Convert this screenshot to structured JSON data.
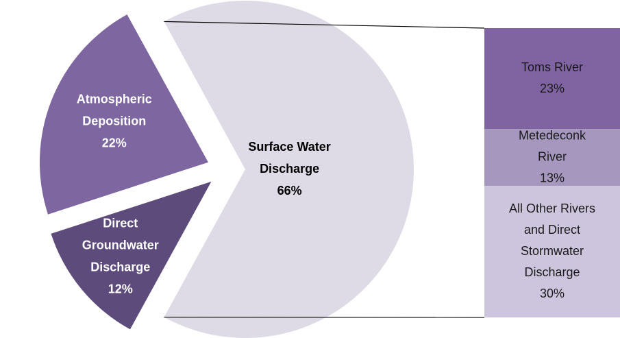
{
  "chart_data": {
    "type": "pie",
    "pie_slices": [
      {
        "name": "Surface Water Discharge",
        "label_lines": [
          "Surface Water",
          "Discharge",
          "66%"
        ],
        "value": 66,
        "color": "#dedbe6",
        "text_color": "#000000"
      },
      {
        "name": "Direct Groundwater Discharge",
        "label_lines": [
          "Direct",
          "Groundwater",
          "Discharge",
          "12%"
        ],
        "value": 12,
        "color": "#5d4b7b",
        "text_color": "#ffffff"
      },
      {
        "name": "Atmospheric Deposition",
        "label_lines": [
          "Atmospheric",
          "Deposition",
          "22%"
        ],
        "value": 22,
        "color": "#7e67a0",
        "text_color": "#ffffff"
      }
    ],
    "bar_segments": [
      {
        "name": "Toms River",
        "label_lines": [
          "Toms River",
          "23%"
        ],
        "value": 23,
        "color": "#8064a2",
        "text_color": "#1a1a1a"
      },
      {
        "name": "Metedeconk River",
        "label_lines": [
          "Metedeconk",
          "River",
          "13%"
        ],
        "value": 13,
        "color": "#a597bd",
        "text_color": "#1a1a1a"
      },
      {
        "name": "All Other Rivers and Direct Stormwater Discharge",
        "label_lines": [
          "All Other Rivers",
          "and Direct",
          "Stormwater",
          "Discharge",
          "30%"
        ],
        "value": 30,
        "color": "#cdc4dd",
        "text_color": "#1a1a1a"
      }
    ],
    "connector_color": "#000000"
  }
}
